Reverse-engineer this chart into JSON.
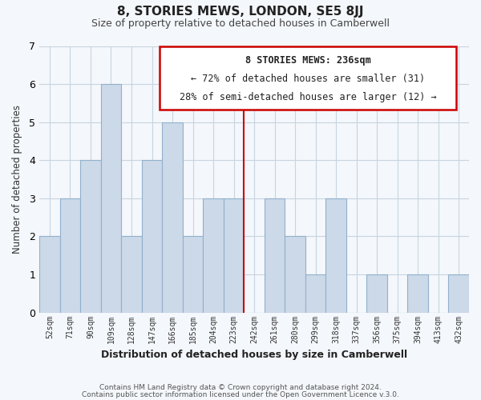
{
  "title": "8, STORIES MEWS, LONDON, SE5 8JJ",
  "subtitle": "Size of property relative to detached houses in Camberwell",
  "xlabel": "Distribution of detached houses by size in Camberwell",
  "ylabel": "Number of detached properties",
  "footer_line1": "Contains HM Land Registry data © Crown copyright and database right 2024.",
  "footer_line2": "Contains public sector information licensed under the Open Government Licence v.3.0.",
  "bar_color": "#ccd9e8",
  "bar_edge_color": "#92b0cc",
  "grid_color": "#c8d4e0",
  "reference_line_x": 242,
  "reference_line_color": "#cc0000",
  "annotation_title": "8 STORIES MEWS: 236sqm",
  "annotation_line1": "← 72% of detached houses are smaller (31)",
  "annotation_line2": "28% of semi-detached houses are larger (12) →",
  "annotation_box_color": "#cc0000",
  "bin_labels": [
    "52sqm",
    "71sqm",
    "90sqm",
    "109sqm",
    "128sqm",
    "147sqm",
    "166sqm",
    "185sqm",
    "204sqm",
    "223sqm",
    "242sqm",
    "261sqm",
    "280sqm",
    "299sqm",
    "318sqm",
    "337sqm",
    "356sqm",
    "375sqm",
    "394sqm",
    "413sqm",
    "432sqm"
  ],
  "bin_edges": [
    52,
    71,
    90,
    109,
    128,
    147,
    166,
    185,
    204,
    223,
    242,
    261,
    280,
    299,
    318,
    337,
    356,
    375,
    394,
    413,
    432
  ],
  "bar_heights": [
    2,
    3,
    4,
    6,
    2,
    4,
    5,
    2,
    3,
    3,
    0,
    3,
    2,
    1,
    3,
    0,
    1,
    0,
    1,
    0,
    1
  ],
  "ylim": [
    0,
    7
  ],
  "yticks": [
    0,
    1,
    2,
    3,
    4,
    5,
    6,
    7
  ],
  "background_color": "#f4f7fb"
}
